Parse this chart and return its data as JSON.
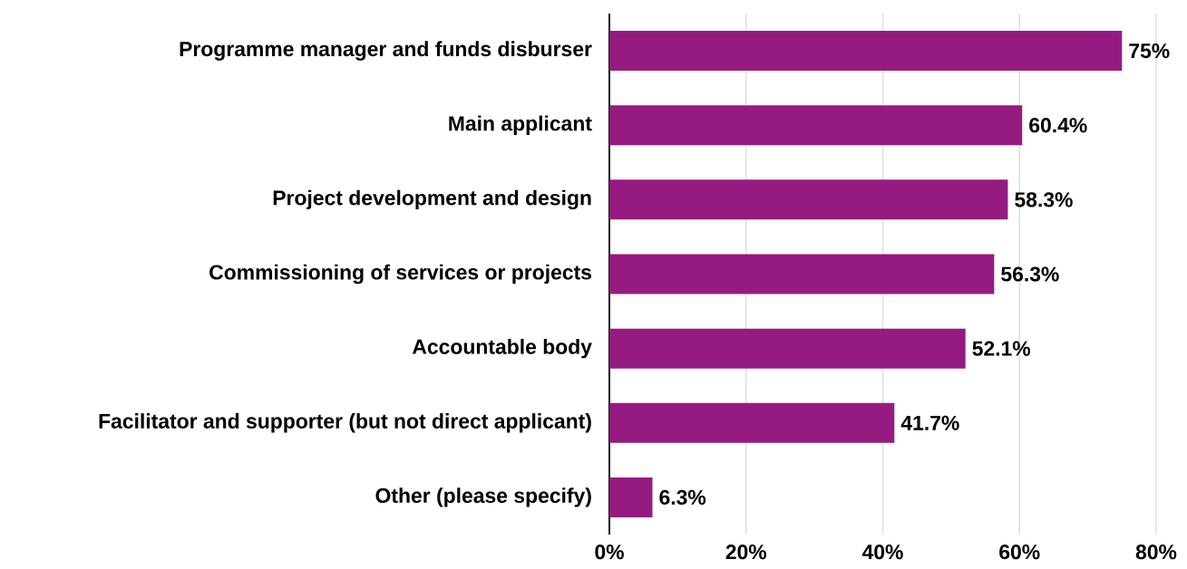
{
  "chart_data": {
    "type": "bar",
    "orientation": "horizontal",
    "categories": [
      "Programme manager and funds disburser",
      "Main applicant",
      "Project development and design",
      "Commissioning of services or projects",
      "Accountable body",
      "Facilitator and supporter (but not direct applicant)",
      "Other (please specify)"
    ],
    "values": [
      75,
      60.4,
      58.3,
      56.3,
      52.1,
      41.7,
      6.3
    ],
    "value_labels": [
      "75%",
      "60.4%",
      "58.3%",
      "56.3%",
      "52.1%",
      "41.7%",
      "6.3%"
    ],
    "color": "#951b81",
    "xlim": [
      0,
      80
    ],
    "xticks": [
      {
        "value": 0,
        "label": "0%"
      },
      {
        "value": 20,
        "label": "20%"
      },
      {
        "value": 40,
        "label": "40%"
      },
      {
        "value": 60,
        "label": "60%"
      },
      {
        "value": 80,
        "label": "80%"
      }
    ],
    "grid": "x"
  }
}
